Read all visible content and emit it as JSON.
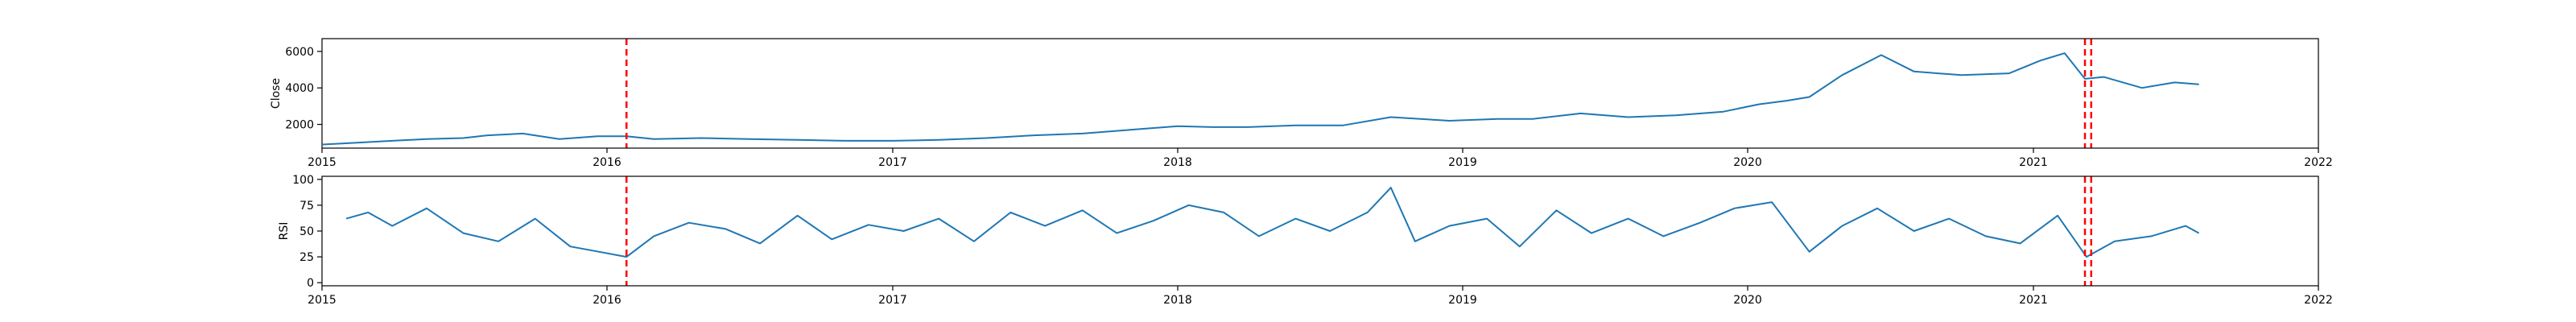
{
  "chart_data": [
    {
      "type": "line",
      "title": "",
      "xlabel": "",
      "ylabel": "Close",
      "xlim": [
        "2015-01-01",
        "2022-01-01"
      ],
      "ylim": [
        700,
        6700
      ],
      "x_ticks": [
        "2015",
        "2016",
        "2017",
        "2018",
        "2019",
        "2020",
        "2021",
        "2022"
      ],
      "y_ticks": [
        2000,
        4000,
        6000
      ],
      "grid": false,
      "line_color": "#1f77b4",
      "marker_color": "#ff0000",
      "vertical_markers": [
        "2016-01-26",
        "2021-03-08",
        "2021-03-16"
      ],
      "series": [
        {
          "x": [
            "2015-01-02",
            "2015-02-15",
            "2015-04-01",
            "2015-05-15",
            "2015-07-01",
            "2015-08-01",
            "2015-09-15",
            "2015-11-01",
            "2015-12-20",
            "2016-01-26",
            "2016-03-01",
            "2016-05-01",
            "2016-07-01",
            "2016-09-01",
            "2016-11-01",
            "2017-01-01",
            "2017-03-01",
            "2017-05-01",
            "2017-07-01",
            "2017-09-01",
            "2017-11-01",
            "2018-01-01",
            "2018-02-15",
            "2018-04-01",
            "2018-06-01",
            "2018-08-01",
            "2018-10-01",
            "2018-12-15",
            "2019-02-15",
            "2019-04-01",
            "2019-06-01",
            "2019-08-01",
            "2019-10-01",
            "2019-12-01",
            "2020-01-15",
            "2020-02-20",
            "2020-03-20",
            "2020-05-01",
            "2020-06-20",
            "2020-08-01",
            "2020-10-01",
            "2020-12-01",
            "2021-01-10",
            "2021-02-10",
            "2021-03-08",
            "2021-04-01",
            "2021-05-20",
            "2021-07-01",
            "2021-08-01"
          ],
          "y": [
            900,
            1000,
            1100,
            1200,
            1250,
            1400,
            1500,
            1200,
            1350,
            1350,
            1200,
            1250,
            1200,
            1150,
            1100,
            1100,
            1150,
            1250,
            1400,
            1500,
            1700,
            1900,
            1850,
            1850,
            1950,
            1950,
            2400,
            2200,
            2300,
            2300,
            2600,
            2400,
            2500,
            2700,
            3100,
            3300,
            3500,
            4700,
            5800,
            4900,
            4700,
            4800,
            5500,
            5900,
            4500,
            4600,
            4000,
            4300,
            4200
          ]
        }
      ]
    },
    {
      "type": "line",
      "title": "",
      "xlabel": "",
      "ylabel": "RSI",
      "xlim": [
        "2015-01-01",
        "2022-01-01"
      ],
      "ylim": [
        -3,
        103
      ],
      "x_ticks": [
        "2015",
        "2016",
        "2017",
        "2018",
        "2019",
        "2020",
        "2021",
        "2022"
      ],
      "y_ticks": [
        0,
        25,
        50,
        75,
        100
      ],
      "grid": false,
      "line_color": "#1f77b4",
      "marker_color": "#ff0000",
      "vertical_markers": [
        "2016-01-26",
        "2021-03-08",
        "2021-03-16"
      ],
      "series": [
        {
          "x": [
            "2015-02-01",
            "2015-03-01",
            "2015-04-01",
            "2015-05-15",
            "2015-07-01",
            "2015-08-15",
            "2015-10-01",
            "2015-11-15",
            "2016-01-26",
            "2016-03-01",
            "2016-04-15",
            "2016-06-01",
            "2016-07-15",
            "2016-09-01",
            "2016-10-15",
            "2016-12-01",
            "2017-01-15",
            "2017-03-01",
            "2017-04-15",
            "2017-06-01",
            "2017-07-15",
            "2017-09-01",
            "2017-10-15",
            "2017-12-01",
            "2018-01-15",
            "2018-03-01",
            "2018-04-15",
            "2018-06-01",
            "2018-07-15",
            "2018-09-01",
            "2018-10-01",
            "2018-11-01",
            "2018-12-15",
            "2019-02-01",
            "2019-03-15",
            "2019-05-01",
            "2019-06-15",
            "2019-08-01",
            "2019-09-15",
            "2019-11-01",
            "2019-12-15",
            "2020-02-01",
            "2020-03-20",
            "2020-05-01",
            "2020-06-15",
            "2020-08-01",
            "2020-09-15",
            "2020-11-01",
            "2020-12-15",
            "2021-02-01",
            "2021-03-10",
            "2021-04-15",
            "2021-06-01",
            "2021-07-15",
            "2021-08-01"
          ],
          "y": [
            62,
            68,
            55,
            72,
            48,
            40,
            62,
            35,
            25,
            45,
            58,
            52,
            38,
            65,
            42,
            56,
            50,
            62,
            40,
            68,
            55,
            70,
            48,
            60,
            75,
            68,
            45,
            62,
            50,
            68,
            92,
            40,
            55,
            62,
            35,
            70,
            48,
            62,
            45,
            58,
            72,
            78,
            30,
            55,
            72,
            50,
            62,
            45,
            38,
            65,
            25,
            40,
            45,
            55,
            48
          ]
        }
      ]
    }
  ]
}
